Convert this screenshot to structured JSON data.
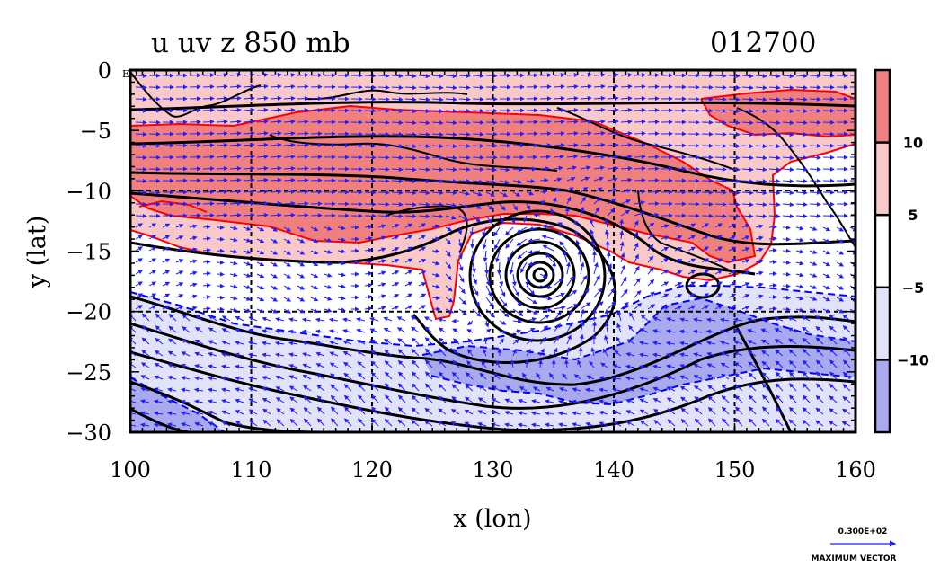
{
  "title_left": "u uv z 850 mb",
  "title_right": "012700",
  "equator_label": "EQ",
  "colors": {
    "strong_pos": "#f08080",
    "weak_pos": "#f9c8c8",
    "neutral": "#ffffff",
    "weak_neg": "#e2e2fa",
    "strong_neg": "#a9a9ef",
    "contour_pos": "#ff0000",
    "contour_neg": "#0000ff",
    "height_contour": "#000000",
    "vector": "#1e1eff"
  },
  "chart_data": {
    "type": "heatmap",
    "variable": "u",
    "overlays": [
      "uv vectors",
      "z contours"
    ],
    "level": "850 mb",
    "time": "012700",
    "xlabel": "x (lon)",
    "ylabel": "y (lat)",
    "xlim": [
      100,
      160
    ],
    "ylim": [
      -30,
      0
    ],
    "x_ticks": [
      100,
      110,
      120,
      130,
      140,
      150,
      160
    ],
    "y_ticks": [
      0,
      -5,
      -10,
      -15,
      -20,
      -25,
      -30
    ],
    "y_tick_labels": [
      "0",
      "−5",
      "−10",
      "−15",
      "−20",
      "−25",
      "−30"
    ],
    "grid_lon": [
      110,
      120,
      130,
      140,
      150
    ],
    "grid_lat": [
      -10,
      -20
    ],
    "grid": true,
    "colorbar": {
      "levels": [
        -10,
        -5,
        5,
        10
      ],
      "labels": [
        "−10",
        "−5",
        "5",
        "10"
      ],
      "colors": [
        "#a9a9ef",
        "#e2e2fa",
        "#ffffff",
        "#f9c8c8",
        "#f08080"
      ]
    },
    "cyclone_center": {
      "lon": 134,
      "lat": -17
    },
    "vector_reference": {
      "label": "0.300E+02",
      "caption": "MAXIMUM VECTOR"
    }
  }
}
